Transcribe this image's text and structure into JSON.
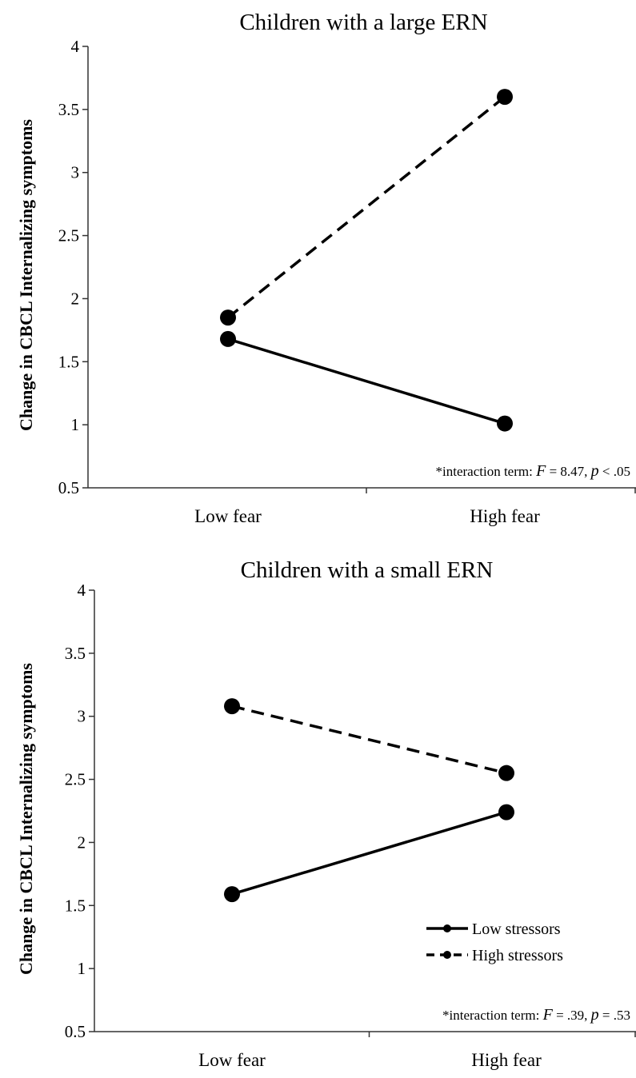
{
  "chart_data": [
    {
      "type": "line",
      "title": "Children with a large ERN",
      "ylabel": "Change in CBCL Internalizing symptoms",
      "xlabel": "",
      "categories": [
        "Low fear",
        "High fear"
      ],
      "ylim": [
        0.5,
        4
      ],
      "yticks": [
        "0.5",
        "1",
        "1.5",
        "2",
        "2.5",
        "3",
        "3.5",
        "4"
      ],
      "grid": false,
      "legend": "none",
      "series": [
        {
          "name": "Low stressors",
          "style": "solid",
          "values": [
            1.68,
            1.01
          ]
        },
        {
          "name": "High stressors",
          "style": "dashed",
          "values": [
            1.85,
            3.6
          ]
        }
      ],
      "annotation": {
        "prefix": "*interaction term: ",
        "f_symbol": "F",
        "f_rest": " = 8.47, ",
        "p_symbol": "p",
        "p_rest": " < .05"
      }
    },
    {
      "type": "line",
      "title": "Children with a small ERN",
      "ylabel": "Change in CBCL Internalizing symptoms",
      "xlabel": "",
      "categories": [
        "Low fear",
        "High fear"
      ],
      "ylim": [
        0.5,
        4
      ],
      "yticks": [
        "0.5",
        "1",
        "1.5",
        "2",
        "2.5",
        "3",
        "3.5",
        "4"
      ],
      "grid": false,
      "legend": "bottom-right",
      "series": [
        {
          "name": "Low stressors",
          "style": "solid",
          "values": [
            1.59,
            2.24
          ]
        },
        {
          "name": "High stressors",
          "style": "dashed",
          "values": [
            3.08,
            2.55
          ]
        }
      ],
      "annotation": {
        "prefix": "*interaction term: ",
        "f_symbol": "F",
        "f_rest": " = .39, ",
        "p_symbol": "p",
        "p_rest": " = .53"
      }
    }
  ]
}
